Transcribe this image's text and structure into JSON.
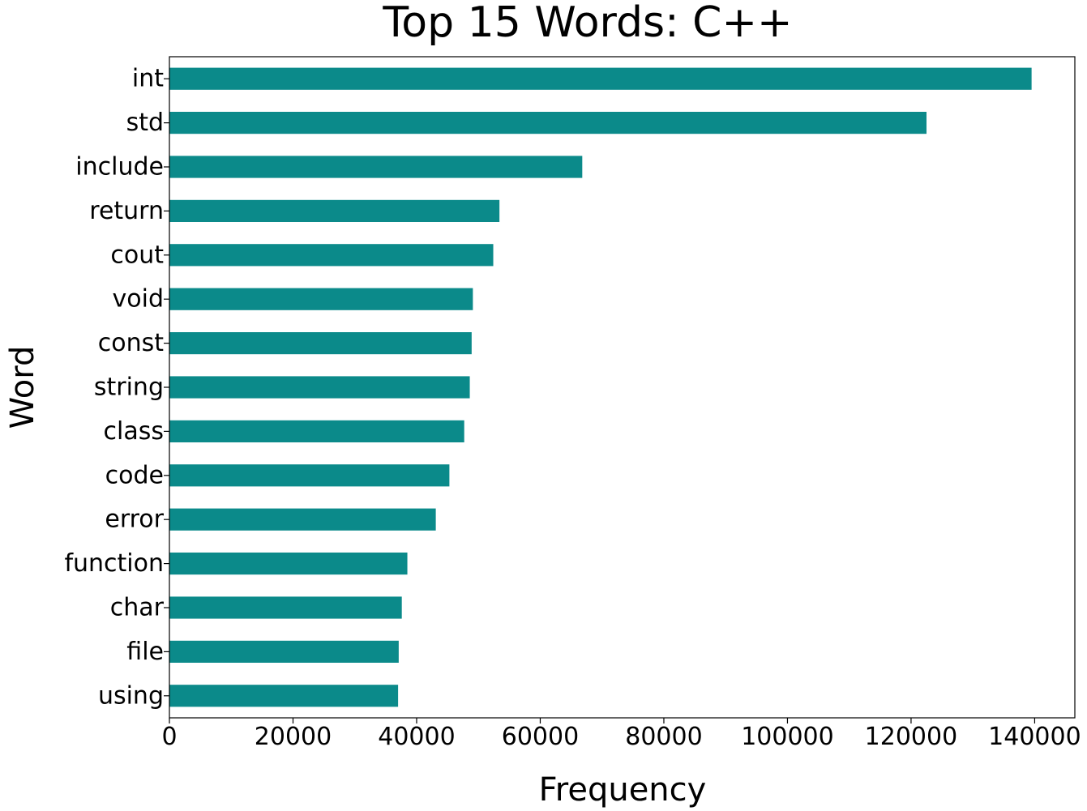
{
  "chart_data": {
    "type": "bar",
    "orientation": "horizontal",
    "title": "Top 15 Words: C++",
    "xlabel": "Frequency",
    "ylabel": "Word",
    "categories": [
      "int",
      "std",
      "include",
      "return",
      "cout",
      "void",
      "const",
      "string",
      "class",
      "code",
      "error",
      "function",
      "char",
      "file",
      "using"
    ],
    "values": [
      139500,
      122500,
      66800,
      53400,
      52400,
      49100,
      48900,
      48600,
      47700,
      45300,
      43100,
      38500,
      37600,
      37100,
      37000
    ],
    "xlim": [
      0,
      146500
    ],
    "xticks": [
      0,
      20000,
      40000,
      60000,
      80000,
      100000,
      120000,
      140000
    ],
    "xtick_labels": [
      "0",
      "20000",
      "40000",
      "60000",
      "80000",
      "100000",
      "120000",
      "140000"
    ],
    "bar_color": "#0b8a8a",
    "grid": false,
    "legend": "none"
  }
}
